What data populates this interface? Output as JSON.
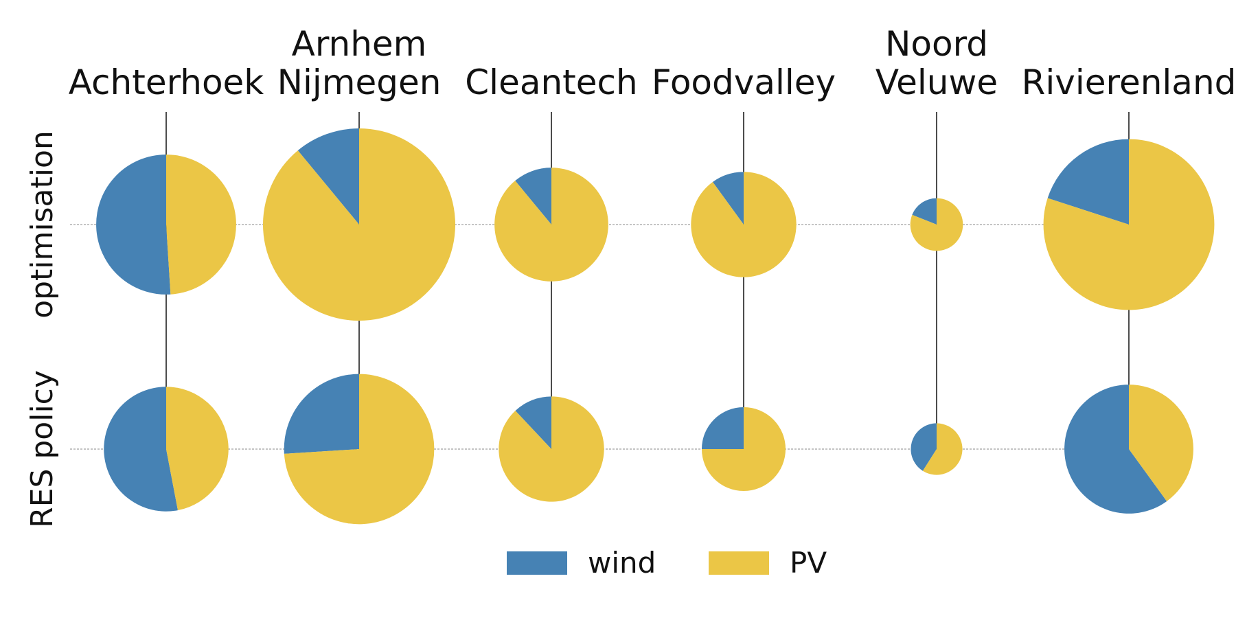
{
  "chart_data": {
    "type": "pie",
    "columns": [
      {
        "name": "Achterhoek",
        "lines": [
          "Achterhoek"
        ]
      },
      {
        "name": "Arnhem Nijmegen",
        "lines": [
          "Arnhem",
          "Nijmegen"
        ]
      },
      {
        "name": "Cleantech",
        "lines": [
          "Cleantech"
        ]
      },
      {
        "name": "Foodvalley",
        "lines": [
          "Foodvalley"
        ]
      },
      {
        "name": "Noord Veluwe",
        "lines": [
          "Noord",
          "Veluwe"
        ]
      },
      {
        "name": "Rivierenland",
        "lines": [
          "Rivierenland"
        ]
      }
    ],
    "rows": [
      "optimisation",
      "RES policy"
    ],
    "series": [
      {
        "name": "wind",
        "color": "#4682b4"
      },
      {
        "name": "PV",
        "color": "#ebc646"
      }
    ],
    "pies": [
      [
        {
          "total": 0.53,
          "shares": {
            "wind": 0.51,
            "PV": 0.49
          }
        },
        {
          "total": 1.0,
          "shares": {
            "wind": 0.11,
            "PV": 0.89
          }
        },
        {
          "total": 0.35,
          "shares": {
            "wind": 0.11,
            "PV": 0.89
          }
        },
        {
          "total": 0.3,
          "shares": {
            "wind": 0.1,
            "PV": 0.9
          }
        },
        {
          "total": 0.075,
          "shares": {
            "wind": 0.19,
            "PV": 0.81
          }
        },
        {
          "total": 0.79,
          "shares": {
            "wind": 0.2,
            "PV": 0.8
          }
        }
      ],
      [
        {
          "total": 0.42,
          "shares": {
            "wind": 0.53,
            "PV": 0.47
          }
        },
        {
          "total": 0.61,
          "shares": {
            "wind": 0.26,
            "PV": 0.74
          }
        },
        {
          "total": 0.3,
          "shares": {
            "wind": 0.12,
            "PV": 0.88
          }
        },
        {
          "total": 0.19,
          "shares": {
            "wind": 0.25,
            "PV": 0.75
          }
        },
        {
          "total": 0.072,
          "shares": {
            "wind": 0.41,
            "PV": 0.59
          }
        },
        {
          "total": 0.45,
          "shares": {
            "wind": 0.6,
            "PV": 0.4
          }
        }
      ]
    ],
    "legend": {
      "position": "bottom-center"
    },
    "grid": false
  }
}
